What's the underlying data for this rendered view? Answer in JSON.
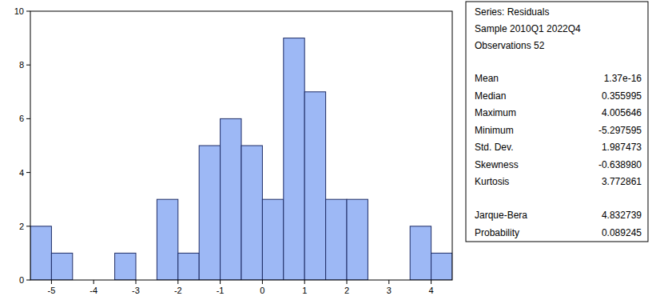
{
  "chart_data": {
    "type": "histogram",
    "bins": [
      -5.5,
      -5.0,
      -4.5,
      -4.0,
      -3.5,
      -3.0,
      -2.5,
      -2.0,
      -1.5,
      -1.0,
      -0.5,
      0,
      0.5,
      1.0,
      1.5,
      2.0,
      2.5,
      3.0,
      3.5,
      4.0,
      4.5
    ],
    "values": [
      2,
      1,
      0,
      0,
      1,
      0,
      3,
      1,
      5,
      6,
      5,
      3,
      9,
      7,
      3,
      3,
      0,
      0,
      2,
      1
    ],
    "color": "#9db8f5",
    "xlim": [
      -5.5,
      4.5
    ],
    "xticks": [
      -5,
      -4,
      -3,
      -2,
      -1,
      0,
      1,
      2,
      3,
      4
    ],
    "ylim": [
      0,
      10
    ],
    "yticks": [
      0,
      2,
      4,
      6,
      8,
      10
    ],
    "grid": false
  },
  "stats": {
    "header": [
      "Series: Residuals",
      "Sample 2010Q1 2022Q4",
      "Observations 52"
    ],
    "rows": [
      [
        "Mean",
        "1.37e-16"
      ],
      [
        "Median",
        "0.355995"
      ],
      [
        "Maximum",
        "4.005646"
      ],
      [
        "Minimum",
        "-5.297595"
      ],
      [
        "Std. Dev.",
        "1.987473"
      ],
      [
        "Skewness",
        "-0.638980"
      ],
      [
        "Kurtosis",
        "3.772861"
      ]
    ],
    "tests": [
      [
        "Jarque-Bera",
        "4.832739"
      ],
      [
        "Probability",
        "0.089245"
      ]
    ]
  }
}
